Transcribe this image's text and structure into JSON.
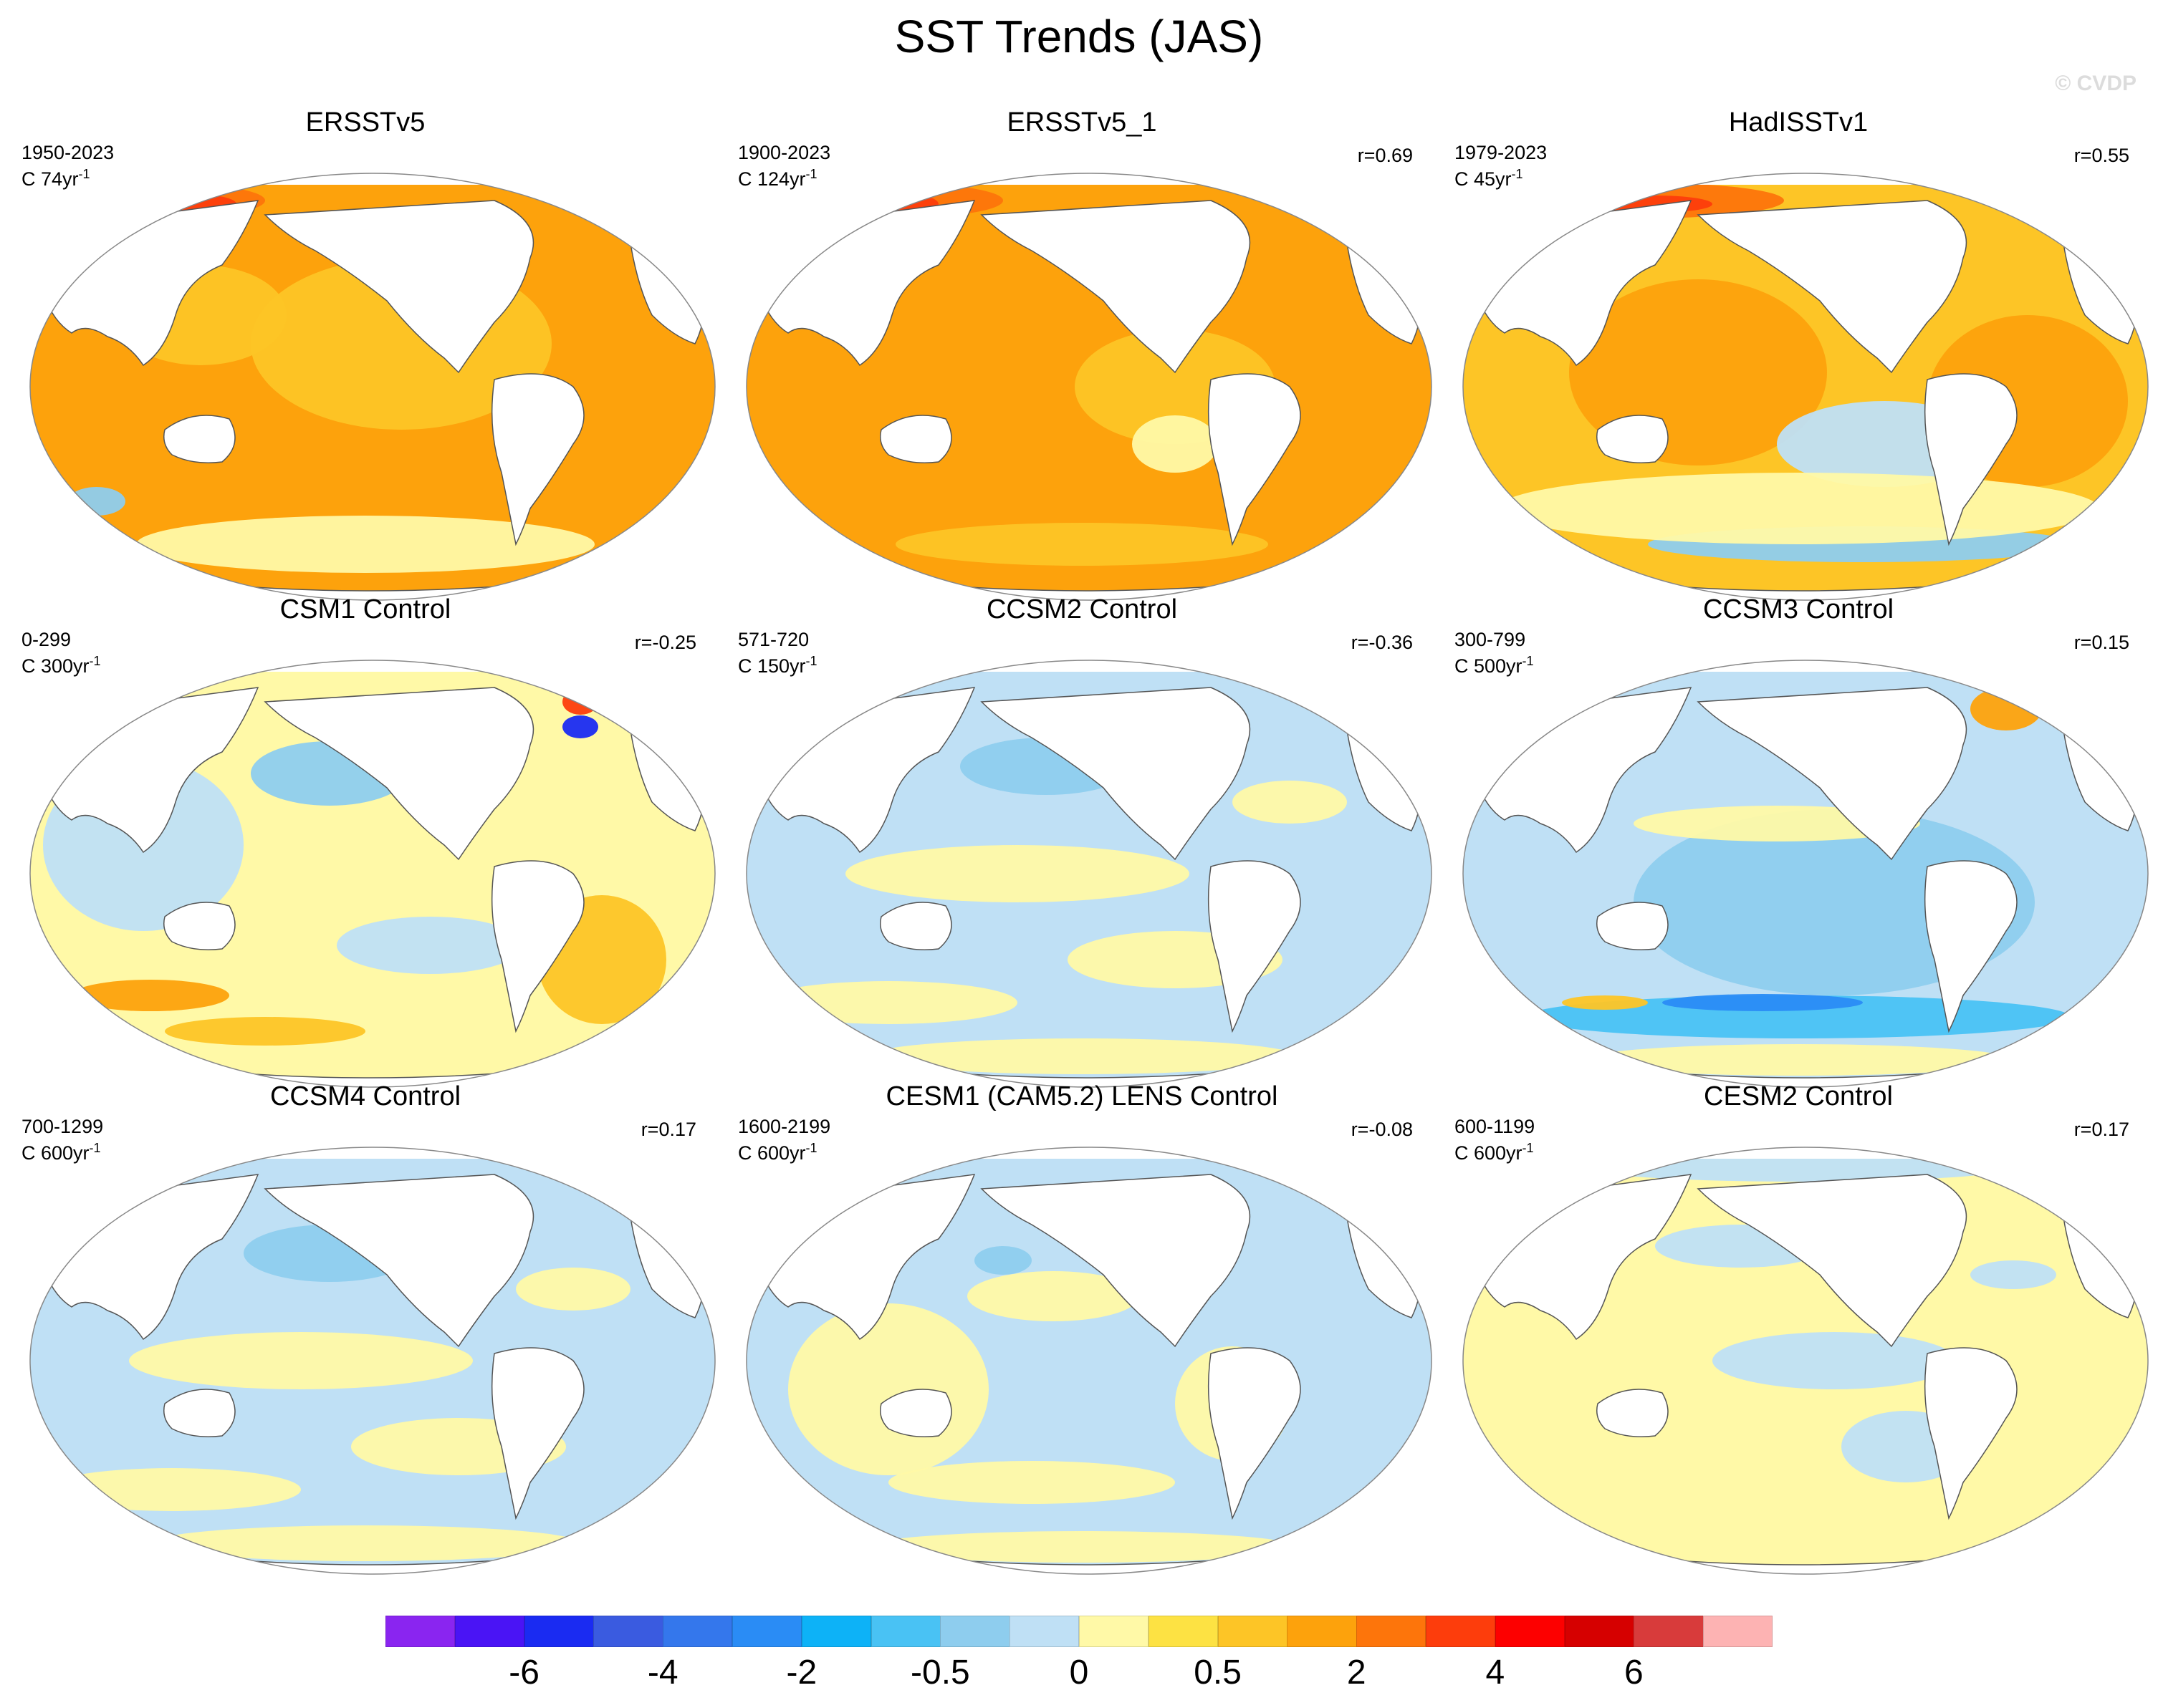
{
  "figure": {
    "title": "SST Trends (JAS)",
    "watermark": "© CVDP"
  },
  "panels": [
    {
      "title": "ERSSTv5",
      "period": "1950-2023",
      "trend_prefix": "C 74yr",
      "trend_exp": "-1",
      "corr": "",
      "style": "warm_strong"
    },
    {
      "title": "ERSSTv5_1",
      "period": "1900-2023",
      "trend_prefix": "C 124yr",
      "trend_exp": "-1",
      "corr": "r=0.69",
      "style": "warm_very"
    },
    {
      "title": "HadISSTv1",
      "period": "1979-2023",
      "trend_prefix": "C 45yr",
      "trend_exp": "-1",
      "corr": "r=0.55",
      "style": "warm_mixed"
    },
    {
      "title": "CSM1 Control",
      "period": "0-299",
      "trend_prefix": "C 300yr",
      "trend_exp": "-1",
      "corr": "r=-0.25",
      "style": "mixed_warmS"
    },
    {
      "title": "CCSM2 Control",
      "period": "571-720",
      "trend_prefix": "C 150yr",
      "trend_exp": "-1",
      "corr": "r=-0.36",
      "style": "mixed_cool"
    },
    {
      "title": "CCSM3 Control",
      "period": "300-799",
      "trend_prefix": "C 500yr",
      "trend_exp": "-1",
      "corr": "r=0.15",
      "style": "cool_strong"
    },
    {
      "title": "CCSM4 Control",
      "period": "700-1299",
      "trend_prefix": "C 600yr",
      "trend_exp": "-1",
      "corr": "r=0.17",
      "style": "mixed_cool"
    },
    {
      "title": "CESM1 (CAM5.2) LENS Control",
      "period": "1600-2199",
      "trend_prefix": "C 600yr",
      "trend_exp": "-1",
      "corr": "r=-0.08",
      "style": "mixed"
    },
    {
      "title": "CESM2 Control",
      "period": "600-1199",
      "trend_prefix": "C 600yr",
      "trend_exp": "-1",
      "corr": "r=0.17",
      "style": "mostly_warm"
    }
  ],
  "colorbar": {
    "colors": [
      "#8a25f0",
      "#4a14f5",
      "#1a2bf2",
      "#3a5be0",
      "#3477ec",
      "#2a8cf5",
      "#0db2f7",
      "#49c2f4",
      "#8ecdee",
      "#bfe0f5",
      "#fff9a7",
      "#fde243",
      "#fdc526",
      "#fda20c",
      "#fd750b",
      "#fd3d0c",
      "#fd0000",
      "#d60000",
      "#d83b3b",
      "#fdb3b3"
    ],
    "tick_labels": [
      "-6",
      "-4",
      "-2",
      "-0.5",
      "0",
      "0.5",
      "2",
      "4",
      "6"
    ]
  }
}
